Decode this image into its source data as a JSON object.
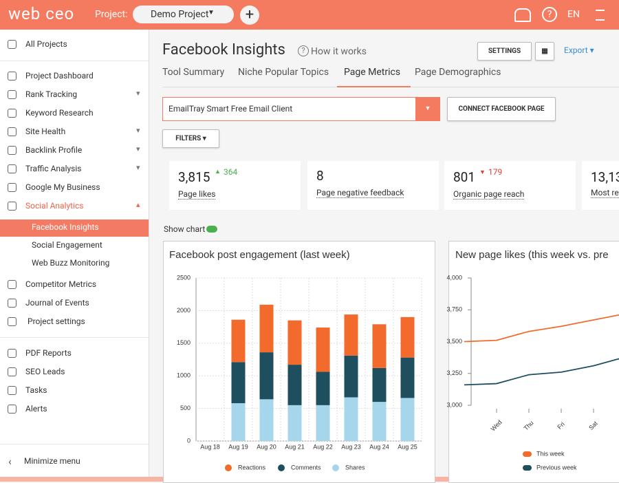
{
  "header": {
    "logo": "web ceo",
    "project_label": "Project:",
    "project": "Demo Project",
    "lang": "EN"
  },
  "sidebar": {
    "items": [
      "All Projects",
      "Project Dashboard",
      "Rank Tracking",
      "Keyword Research",
      "Site Health",
      "Backlink Profile",
      "Traffic Analysis",
      "Google My Business",
      "Social Analytics",
      "Facebook Insights",
      "Social Engagement",
      "Web Buzz Monitoring",
      "Competitor Metrics",
      "Journal of Events",
      "Project settings",
      "PDF Reports",
      "SEO Leads",
      "Tasks",
      "Alerts"
    ],
    "minimize": "Minimize menu"
  },
  "page": {
    "title": "Facebook Insights",
    "how": "How it works",
    "settings": "SETTINGS",
    "export": "Export",
    "tabs": [
      "Tool Summary",
      "Niche Popular Topics",
      "Page Metrics",
      "Page Demographics"
    ],
    "selected_page": "EmailTray Smart Free Email Client",
    "connect": "CONNECT FACEBOOK PAGE",
    "filters": "FILTERS",
    "show_chart": "Show chart"
  },
  "metrics": [
    {
      "value": "3,815",
      "change": "364",
      "trend": "up",
      "label": "Page likes"
    },
    {
      "value": "8",
      "label": "Page negative feedback"
    },
    {
      "value": "801",
      "change": "179",
      "trend": "down",
      "label": "Organic page reach"
    },
    {
      "value": "13,13",
      "label": "Most re"
    }
  ],
  "chart_data": [
    {
      "type": "bar",
      "stacked": true,
      "title": "Facebook post engagement (last week)",
      "categories": [
        "Aug 18",
        "Aug 19",
        "Aug 20",
        "Aug 21",
        "Aug 22",
        "Aug 23",
        "Aug 24",
        "Aug 25"
      ],
      "series": [
        {
          "name": "Reactions",
          "color": "#f26b2c",
          "values": [
            0,
            650,
            730,
            680,
            680,
            630,
            670,
            620
          ]
        },
        {
          "name": "Comments",
          "color": "#1f4f5e",
          "values": [
            0,
            630,
            720,
            620,
            510,
            640,
            520,
            620
          ]
        },
        {
          "name": "Shares",
          "color": "#a6d6ec",
          "values": [
            0,
            580,
            640,
            550,
            550,
            670,
            600,
            660
          ]
        }
      ],
      "ylim": [
        0,
        2500
      ],
      "yticks": [
        0,
        500,
        1000,
        1500,
        2000,
        2500
      ],
      "grid": true
    },
    {
      "type": "line",
      "title": "New page likes (this week vs. pre",
      "categories": [
        null,
        "Wed",
        "Thu",
        "Fri",
        "Sat",
        null
      ],
      "series": [
        {
          "name": "This week",
          "color": "#f26b2c",
          "values": [
            3500,
            3510,
            3580,
            3620,
            3670,
            3720
          ]
        },
        {
          "name": "Previous week",
          "color": "#1f4f5e",
          "values": [
            3160,
            3170,
            3240,
            3260,
            3310,
            3380
          ]
        }
      ],
      "ylim": [
        3000,
        4000
      ],
      "yticks": [
        {
          "value": 3000,
          "label": "3,000"
        },
        {
          "value": 3250,
          "label": "3,250"
        },
        {
          "value": 3500,
          "label": "3,500"
        },
        {
          "value": 3750,
          "label": "3,750"
        },
        {
          "value": 4000,
          "label": "4,000"
        }
      ],
      "grid": false
    }
  ]
}
